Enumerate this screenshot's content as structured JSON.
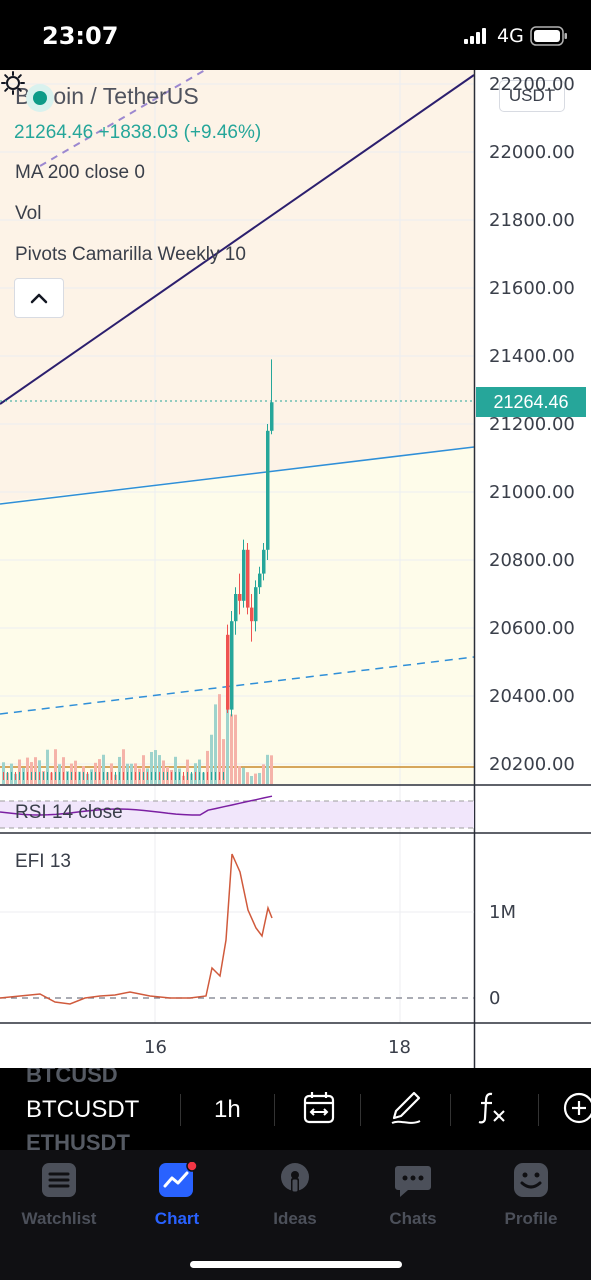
{
  "status_bar": {
    "time": "23:07",
    "network": "4G"
  },
  "chart": {
    "symbol_title": "Bitcoin / TetherUS",
    "price_line": "21264.46 +1838.03 (+9.46%)",
    "indicators": [
      "MA 200 close 0",
      "Vol",
      "Pivots Camarilla Weekly 10"
    ],
    "currency_button": "USDT",
    "current_price_tag": "21264.46",
    "price_axis": [
      "22200.00",
      "22000.00",
      "21800.00",
      "21600.00",
      "21400.00",
      "21200.00",
      "21000.00",
      "20800.00",
      "20600.00",
      "20400.00",
      "20200.00"
    ],
    "rsi_label": "RSI 14 close",
    "efi_label": "EFI 13",
    "efi_axis": [
      "1M",
      "0"
    ],
    "time_axis": [
      "16",
      "18"
    ],
    "colors": {
      "up": "#26a69a",
      "down": "#ef5350",
      "pivot_line": "#2196f3",
      "trend_line": "#3c2a7a",
      "efi_line": "#d05a3c",
      "rsi_line": "#7b1fa2"
    }
  },
  "toolbar": {
    "ghost_above": "BTCUSD",
    "symbol": "BTCUSDT",
    "interval": "1h",
    "ghost_below": "ETHUSDT",
    "icons": [
      "calendar-range-icon",
      "pencil-icon",
      "fx-indicator-icon",
      "add-icon"
    ]
  },
  "tabbar": {
    "tabs": [
      {
        "label": "Watchlist",
        "icon": "watchlist-icon"
      },
      {
        "label": "Chart",
        "icon": "chart-icon",
        "active": true
      },
      {
        "label": "Ideas",
        "icon": "ideas-icon"
      },
      {
        "label": "Chats",
        "icon": "chats-icon"
      },
      {
        "label": "Profile",
        "icon": "profile-icon"
      }
    ]
  }
}
